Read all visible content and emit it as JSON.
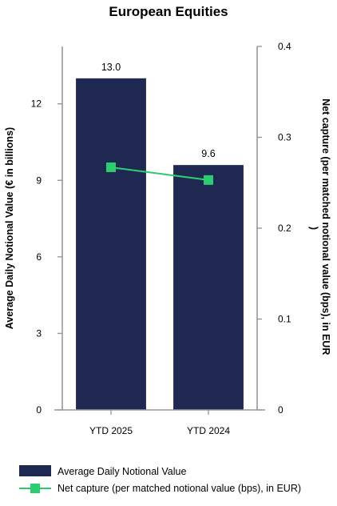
{
  "chart_data": {
    "type": "bar",
    "title": "European Equities",
    "categories": [
      "YTD 2025",
      "YTD 2024"
    ],
    "series": [
      {
        "name": "Average Daily Notional Value",
        "kind": "bar",
        "axis": "left",
        "values": [
          13.0,
          9.6
        ],
        "labels": [
          "13.0",
          "9.6"
        ],
        "color": "#1f2851"
      },
      {
        "name": "Net capture (per matched notional value (bps), in EUR)",
        "kind": "line",
        "axis": "right",
        "values": [
          0.267,
          0.253
        ],
        "color": "#2ecc71"
      }
    ],
    "ylabel": "Average Daily Notional Value (€ in billions)",
    "ylabel_right_lines": [
      "Net capture (per matched notional value (bps), in EUR",
      ")"
    ],
    "ylim": [
      0,
      14.25
    ],
    "yticks": [
      0,
      3,
      6,
      9,
      12
    ],
    "ylim_right": [
      0,
      0.4
    ],
    "yticks_right": [
      0,
      0.1,
      0.2,
      0.3,
      0.4
    ],
    "grid": false,
    "legend_position": "bottom"
  }
}
